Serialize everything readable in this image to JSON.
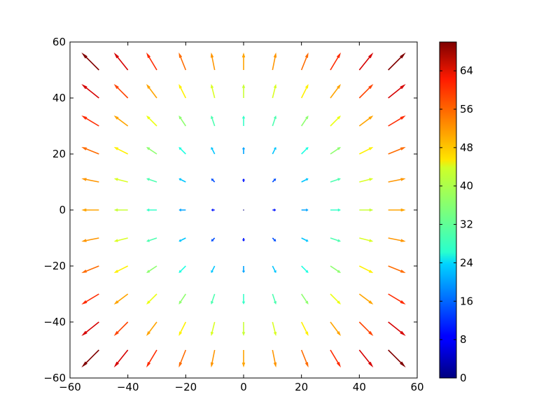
{
  "chart_data": {
    "type": "quiver",
    "title": "",
    "xlabel": "",
    "ylabel": "",
    "xlim": [
      -60,
      60
    ],
    "ylim": [
      -60,
      60
    ],
    "x_ticks": [
      -60,
      -40,
      -20,
      0,
      20,
      40,
      60
    ],
    "y_ticks": [
      -60,
      -40,
      -20,
      0,
      20,
      40,
      60
    ],
    "x_tick_labels": [
      "−60",
      "−40",
      "−20",
      "0",
      "20",
      "40",
      "60"
    ],
    "y_tick_labels": [
      "−60",
      "−40",
      "−20",
      "0",
      "20",
      "40",
      "60"
    ],
    "grid": false,
    "colormap": "jet",
    "color_range": [
      0,
      70
    ],
    "colorbar_ticks": [
      0,
      8,
      16,
      24,
      32,
      40,
      48,
      56,
      64
    ],
    "colorbar_tick_labels": [
      "0",
      "8",
      "16",
      "24",
      "32",
      "40",
      "48",
      "56",
      "64"
    ],
    "grid_x": [
      -50,
      -40,
      -30,
      -20,
      -10,
      0,
      10,
      20,
      30,
      40,
      50
    ],
    "grid_y": [
      -50,
      -40,
      -30,
      -20,
      -10,
      0,
      10,
      20,
      30,
      40,
      50
    ],
    "vector_field": "u = x, v = y",
    "color_value": "sqrt(u^2 + v^2)"
  }
}
